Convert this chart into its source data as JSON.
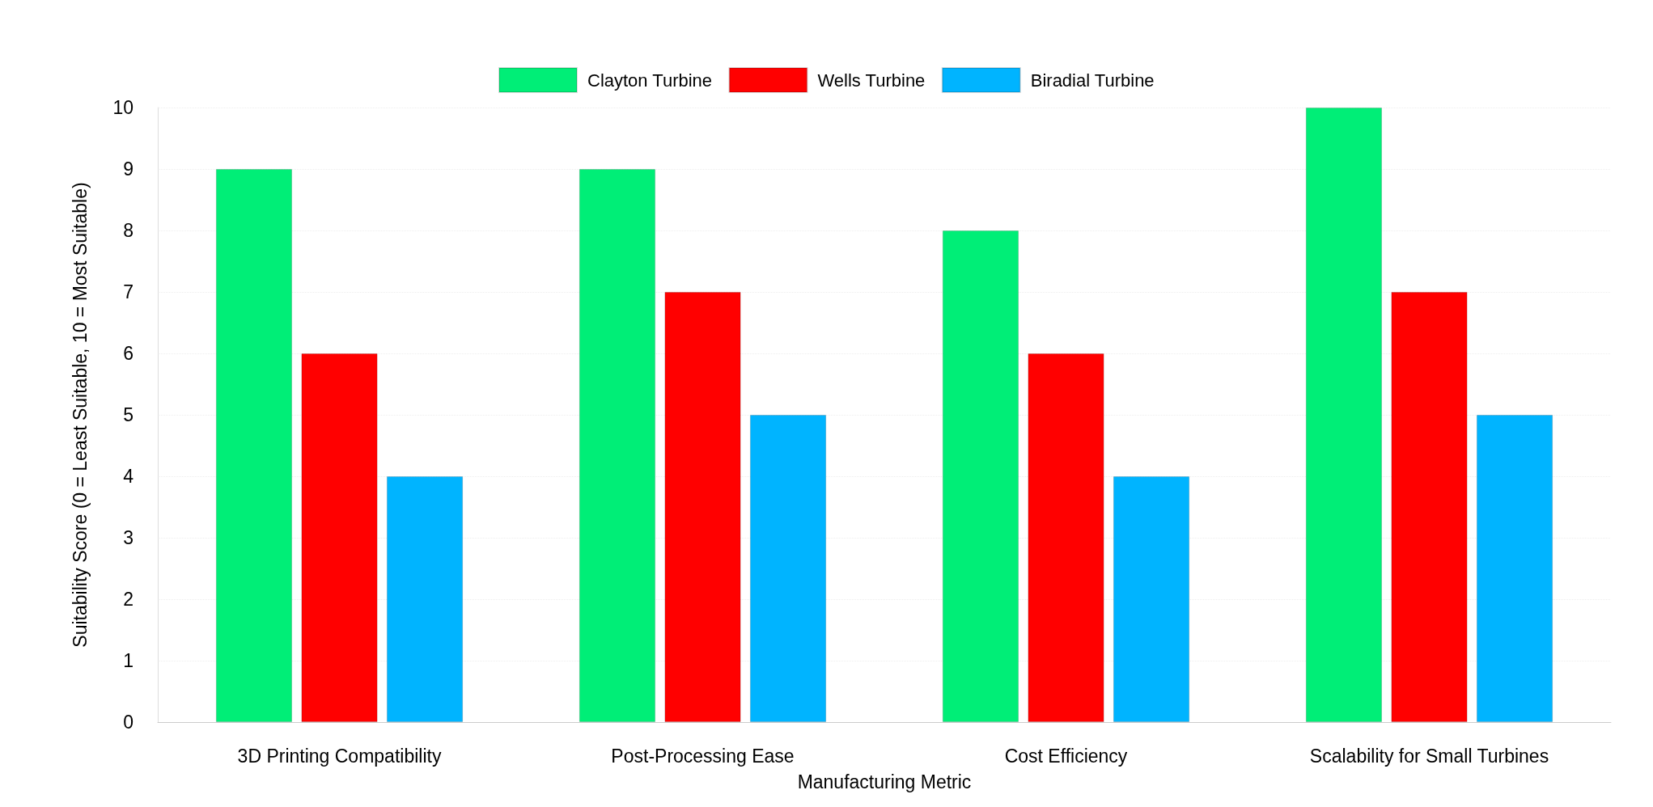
{
  "chart_data": {
    "type": "bar",
    "xlabel": "Manufacturing Metric",
    "ylabel": "Suitability Score (0 = Least Suitable, 10 = Most Suitable)",
    "categories": [
      "3D Printing Compatibility",
      "Post-Processing Ease",
      "Cost Efficiency",
      "Scalability for Small Turbines"
    ],
    "series": [
      {
        "name": "Clayton Turbine",
        "color": "#00ee77",
        "values": [
          9,
          9,
          8,
          10
        ]
      },
      {
        "name": "Wells Turbine",
        "color": "#ff0000",
        "values": [
          6,
          7,
          6,
          7
        ]
      },
      {
        "name": "Biradial Turbine",
        "color": "#00b4ff",
        "values": [
          4,
          5,
          4,
          5
        ]
      }
    ],
    "ylim": [
      0,
      10
    ],
    "yticks": [
      0,
      1,
      2,
      3,
      4,
      5,
      6,
      7,
      8,
      9,
      10
    ],
    "grid": "y",
    "legend": "top"
  }
}
